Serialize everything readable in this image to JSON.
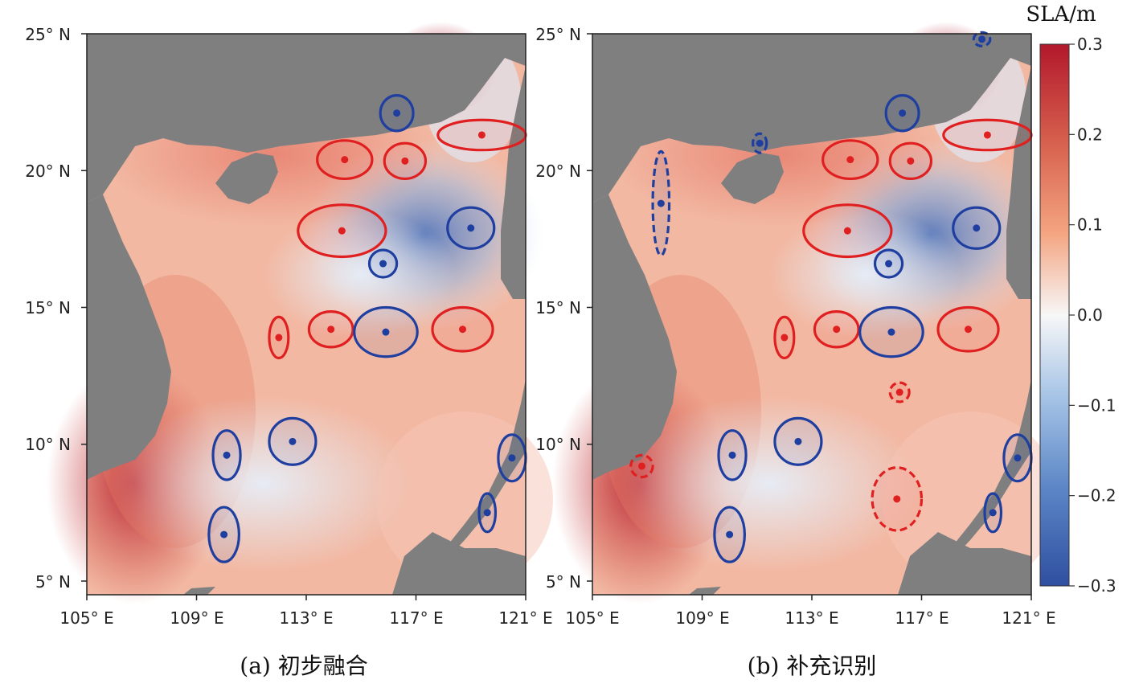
{
  "colorbar": {
    "title": "SLA/m",
    "ticks": [
      "0.3",
      "0.2",
      "0.1",
      "0.0",
      "−0.1",
      "−0.2",
      "−0.3"
    ],
    "min": -0.3,
    "max": 0.3,
    "colors": {
      "high": "#b2182b",
      "mid": "#f7f7f7",
      "low": "#2f5aa8"
    }
  },
  "colors": {
    "land": "#7f7f7f",
    "anticyclonic": "#e02020",
    "cyclonic": "#1f3fa0"
  },
  "axes": {
    "lon_labels": [
      "105° E",
      "109° E",
      "113° E",
      "117° E",
      "121° E"
    ],
    "lat_labels": [
      "25° N",
      "20° N",
      "15° N",
      "10° N",
      "5° N"
    ],
    "lon_values": [
      105,
      109,
      113,
      117,
      121
    ],
    "lat_values": [
      25,
      20,
      15,
      10,
      5
    ]
  },
  "panels": [
    {
      "caption": "(a) 初步融合"
    },
    {
      "caption": "(b) 补充识别"
    }
  ],
  "map": {
    "lon_range": [
      105,
      121
    ],
    "lat_range": [
      4.5,
      25
    ],
    "eddies": [
      {
        "type": "cyclonic",
        "lon": 116.3,
        "lat": 22.1,
        "rlon": 0.6,
        "rlat": 0.65
      },
      {
        "type": "anticyclonic",
        "lon": 119.4,
        "lat": 21.3,
        "rlon": 1.6,
        "rlat": 0.55
      },
      {
        "type": "anticyclonic",
        "lon": 114.4,
        "lat": 20.4,
        "rlon": 1.0,
        "rlat": 0.7
      },
      {
        "type": "anticyclonic",
        "lon": 116.6,
        "lat": 20.35,
        "rlon": 0.75,
        "rlat": 0.65
      },
      {
        "type": "anticyclonic",
        "lon": 114.3,
        "lat": 17.8,
        "rlon": 1.6,
        "rlat": 0.95
      },
      {
        "type": "cyclonic",
        "lon": 119.0,
        "lat": 17.9,
        "rlon": 0.85,
        "rlat": 0.75
      },
      {
        "type": "cyclonic",
        "lon": 115.8,
        "lat": 16.6,
        "rlon": 0.5,
        "rlat": 0.5
      },
      {
        "type": "anticyclonic",
        "lon": 112.0,
        "lat": 13.9,
        "rlon": 0.35,
        "rlat": 0.75
      },
      {
        "type": "anticyclonic",
        "lon": 113.9,
        "lat": 14.2,
        "rlon": 0.8,
        "rlat": 0.65
      },
      {
        "type": "cyclonic",
        "lon": 115.9,
        "lat": 14.1,
        "rlon": 1.15,
        "rlat": 0.9
      },
      {
        "type": "anticyclonic",
        "lon": 118.7,
        "lat": 14.2,
        "rlon": 1.1,
        "rlat": 0.8
      },
      {
        "type": "cyclonic",
        "lon": 110.1,
        "lat": 9.6,
        "rlon": 0.5,
        "rlat": 0.9
      },
      {
        "type": "cyclonic",
        "lon": 112.5,
        "lat": 10.1,
        "rlon": 0.85,
        "rlat": 0.85
      },
      {
        "type": "cyclonic",
        "lon": 120.5,
        "lat": 9.5,
        "rlon": 0.5,
        "rlat": 0.85
      },
      {
        "type": "cyclonic",
        "lon": 110.0,
        "lat": 6.7,
        "rlon": 0.55,
        "rlat": 1.0
      },
      {
        "type": "cyclonic",
        "lon": 119.6,
        "lat": 7.5,
        "rlon": 0.3,
        "rlat": 0.7
      }
    ],
    "added_eddies": [
      {
        "type": "cyclonic",
        "lon": 107.5,
        "lat": 18.8,
        "rlon": 0.3,
        "rlat": 1.9
      },
      {
        "type": "cyclonic",
        "lon": 111.1,
        "lat": 21.0,
        "rlon": 0.25,
        "rlat": 0.35
      },
      {
        "type": "cyclonic",
        "lon": 119.2,
        "lat": 24.8,
        "rlon": 0.3,
        "rlat": 0.25
      },
      {
        "type": "anticyclonic",
        "lon": 116.2,
        "lat": 11.9,
        "rlon": 0.35,
        "rlat": 0.35
      },
      {
        "type": "anticyclonic",
        "lon": 106.8,
        "lat": 9.2,
        "rlon": 0.4,
        "rlat": 0.4
      },
      {
        "type": "anticyclonic",
        "lon": 116.1,
        "lat": 8.0,
        "rlon": 0.9,
        "rlat": 1.15
      }
    ]
  }
}
